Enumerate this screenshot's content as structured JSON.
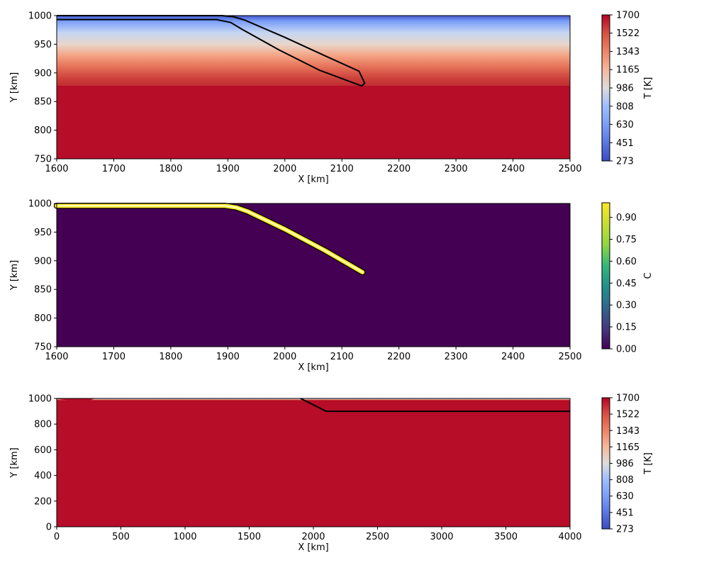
{
  "chart_data": [
    {
      "type": "heatmap",
      "xlabel": "X [km]",
      "ylabel": "Y [km]",
      "xlim": [
        1600,
        2500
      ],
      "ylim": [
        750,
        1000
      ],
      "xticks": [
        "1600",
        "1700",
        "1800",
        "1900",
        "2000",
        "2100",
        "2200",
        "2300",
        "2400",
        "2500"
      ],
      "yticks": [
        "750",
        "800",
        "850",
        "900",
        "950",
        "1000"
      ],
      "colorbar": {
        "label": "T [K]",
        "colormap": "coolwarm",
        "range": [
          273,
          1700
        ],
        "ticks": [
          "273",
          "451",
          "630",
          "808",
          "986",
          "1165",
          "1343",
          "1522",
          "1700"
        ]
      },
      "series": [
        {
          "kind": "slab-outline",
          "color": "#000000",
          "x": [
            1600,
            1870,
            1890,
            1910,
            1930,
            2000,
            2070,
            2130,
            2140,
            2135,
            2060,
            1990,
            1925,
            1905,
            1880,
            1600
          ],
          "y": [
            1000,
            1000,
            1000,
            998,
            992,
            962,
            930,
            903,
            882,
            877,
            905,
            940,
            976,
            988,
            993,
            993
          ]
        }
      ]
    },
    {
      "type": "heatmap",
      "xlabel": "X [km]",
      "ylabel": "Y [km]",
      "xlim": [
        1600,
        2500
      ],
      "ylim": [
        750,
        1000
      ],
      "xticks": [
        "1600",
        "1700",
        "1800",
        "1900",
        "2000",
        "2100",
        "2200",
        "2300",
        "2400",
        "2500"
      ],
      "yticks": [
        "750",
        "800",
        "850",
        "900",
        "950",
        "1000"
      ],
      "colorbar": {
        "label": "C",
        "colormap": "viridis",
        "range": [
          0,
          1
        ],
        "ticks": [
          "0.00",
          "0.15",
          "0.30",
          "0.45",
          "0.60",
          "0.75",
          "0.90"
        ]
      },
      "series": [
        {
          "kind": "composition-band",
          "color": "#fde725",
          "x": [
            1600,
            1870,
            1895,
            1915,
            1935,
            2000,
            2070,
            2136
          ],
          "y": [
            996,
            996,
            996,
            993,
            986,
            955,
            918,
            880
          ]
        }
      ]
    },
    {
      "type": "heatmap",
      "xlabel": "X [km]",
      "ylabel": "Y [km]",
      "xlim": [
        0,
        4000
      ],
      "ylim": [
        0,
        1000
      ],
      "xticks": [
        "0",
        "500",
        "1000",
        "1500",
        "2000",
        "2500",
        "3000",
        "3500",
        "4000"
      ],
      "yticks": [
        "0",
        "200",
        "400",
        "600",
        "800",
        "1000"
      ],
      "colorbar": {
        "label": "T [K]",
        "colormap": "coolwarm",
        "range": [
          273,
          1700
        ],
        "ticks": [
          "273",
          "451",
          "630",
          "808",
          "986",
          "1165",
          "1343",
          "1522",
          "1700"
        ]
      },
      "series": [
        {
          "kind": "slab-line",
          "color": "#000000",
          "x": [
            1900,
            2000,
            2100,
            4000
          ],
          "y": [
            1000,
            950,
            900,
            900
          ]
        }
      ]
    }
  ]
}
